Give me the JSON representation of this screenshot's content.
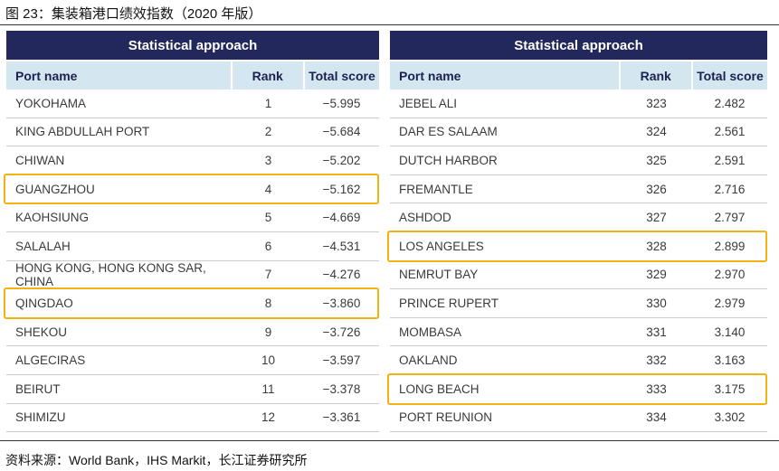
{
  "figure_title": "图 23：集装箱港口绩效指数（2020 年版）",
  "source": "资料来源：World Bank，IHS Markit，长江证券研究所",
  "colors": {
    "banner": "#23285c",
    "header_bg": "#d4e7f0",
    "highlight": "#f2b20f"
  },
  "left_table": {
    "banner": "Statistical approach",
    "columns": [
      "Port name",
      "Rank",
      "Total score"
    ],
    "rows": [
      {
        "name": "YOKOHAMA",
        "rank": "1",
        "score": "−5.995"
      },
      {
        "name": "KING ABDULLAH PORT",
        "rank": "2",
        "score": "−5.684"
      },
      {
        "name": "CHIWAN",
        "rank": "3",
        "score": "−5.202"
      },
      {
        "name": "GUANGZHOU",
        "rank": "4",
        "score": "−5.162",
        "highlighted": true
      },
      {
        "name": "KAOHSIUNG",
        "rank": "5",
        "score": "−4.669"
      },
      {
        "name": "SALALAH",
        "rank": "6",
        "score": "−4.531"
      },
      {
        "name": "HONG KONG, HONG KONG SAR, CHINA",
        "rank": "7",
        "score": "−4.276"
      },
      {
        "name": "QINGDAO",
        "rank": "8",
        "score": "−3.860",
        "highlighted": true
      },
      {
        "name": "SHEKOU",
        "rank": "9",
        "score": "−3.726"
      },
      {
        "name": "ALGECIRAS",
        "rank": "10",
        "score": "−3.597"
      },
      {
        "name": "BEIRUT",
        "rank": "11",
        "score": "−3.378"
      },
      {
        "name": "SHIMIZU",
        "rank": "12",
        "score": "−3.361"
      }
    ]
  },
  "right_table": {
    "banner": "Statistical approach",
    "columns": [
      "Port name",
      "Rank",
      "Total score"
    ],
    "rows": [
      {
        "name": "JEBEL ALI",
        "rank": "323",
        "score": "2.482"
      },
      {
        "name": "DAR ES SALAAM",
        "rank": "324",
        "score": "2.561"
      },
      {
        "name": "DUTCH HARBOR",
        "rank": "325",
        "score": "2.591"
      },
      {
        "name": "FREMANTLE",
        "rank": "326",
        "score": "2.716"
      },
      {
        "name": "ASHDOD",
        "rank": "327",
        "score": "2.797"
      },
      {
        "name": "LOS ANGELES",
        "rank": "328",
        "score": "2.899",
        "highlighted": true
      },
      {
        "name": "NEMRUT BAY",
        "rank": "329",
        "score": "2.970"
      },
      {
        "name": "PRINCE RUPERT",
        "rank": "330",
        "score": "2.979"
      },
      {
        "name": "MOMBASA",
        "rank": "331",
        "score": "3.140"
      },
      {
        "name": "OAKLAND",
        "rank": "332",
        "score": "3.163"
      },
      {
        "name": "LONG BEACH",
        "rank": "333",
        "score": "3.175",
        "highlighted": true
      },
      {
        "name": "PORT REUNION",
        "rank": "334",
        "score": "3.302"
      }
    ]
  }
}
